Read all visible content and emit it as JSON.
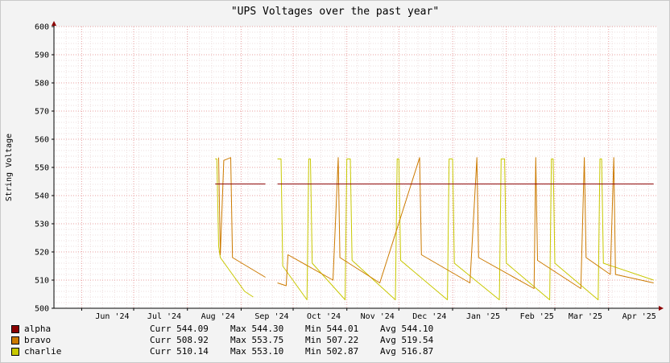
{
  "chart_data": {
    "type": "line",
    "title": "\"UPS Voltages over the past year\"",
    "ylabel": "String Voltage",
    "xlabel": "",
    "ylim": [
      500,
      600
    ],
    "xlim": [
      "2024-05-16",
      "2025-04-29"
    ],
    "yticks": [
      500,
      510,
      520,
      530,
      540,
      550,
      560,
      570,
      580,
      590,
      600
    ],
    "xticks": [
      {
        "label": "Jun '24",
        "date": "2024-06-01"
      },
      {
        "label": "Jul '24",
        "date": "2024-07-01"
      },
      {
        "label": "Aug '24",
        "date": "2024-08-01"
      },
      {
        "label": "Sep '24",
        "date": "2024-09-01"
      },
      {
        "label": "Oct '24",
        "date": "2024-10-01"
      },
      {
        "label": "Nov '24",
        "date": "2024-11-01"
      },
      {
        "label": "Dec '24",
        "date": "2024-12-01"
      },
      {
        "label": "Jan '25",
        "date": "2025-01-01"
      },
      {
        "label": "Feb '25",
        "date": "2025-02-01"
      },
      {
        "label": "Mar '25",
        "date": "2025-03-01"
      },
      {
        "label": "Apr '25",
        "date": "2025-04-01"
      }
    ],
    "grid": true,
    "legend_position": "bottom",
    "series": [
      {
        "name": "alpha",
        "color": "#8b0000",
        "stats": {
          "curr_label": "Curr",
          "curr": "544.09",
          "max_label": "Max",
          "max": "544.30",
          "min_label": "Min",
          "min": "544.01",
          "avg_label": "Avg",
          "avg": "544.10"
        },
        "segments": [
          [
            [
              "2024-08-17",
              544.1
            ],
            [
              "2024-09-15",
              544.1
            ]
          ],
          [
            [
              "2024-09-22",
              544.1
            ],
            [
              "2025-04-27",
              544.1
            ]
          ]
        ]
      },
      {
        "name": "bravo",
        "color": "#cc7a00",
        "stats": {
          "curr_label": "Curr",
          "curr": "508.92",
          "max_label": "Max",
          "max": "553.75",
          "min_label": "Min",
          "min": "507.22",
          "avg_label": "Avg",
          "avg": "519.54"
        },
        "segments": [
          [
            [
              "2024-08-19",
              553.5
            ],
            [
              "2024-08-20",
              519
            ],
            [
              "2024-08-22",
              552.5
            ],
            [
              "2024-08-26",
              553.5
            ],
            [
              "2024-08-27",
              518
            ],
            [
              "2024-09-15",
              511
            ]
          ],
          [
            [
              "2024-09-22",
              509
            ],
            [
              "2024-09-27",
              508
            ],
            [
              "2024-09-28",
              519
            ],
            [
              "2024-10-24",
              510
            ],
            [
              "2024-10-27",
              553.5
            ],
            [
              "2024-10-28",
              518
            ],
            [
              "2024-11-20",
              509
            ],
            [
              "2024-12-13",
              553.5
            ],
            [
              "2024-12-14",
              519
            ],
            [
              "2025-01-11",
              509
            ],
            [
              "2025-01-15",
              553.5
            ],
            [
              "2025-01-16",
              518
            ],
            [
              "2025-02-17",
              507
            ],
            [
              "2025-02-18",
              553.5
            ],
            [
              "2025-02-19",
              517
            ],
            [
              "2025-03-16",
              507
            ],
            [
              "2025-03-18",
              553.5
            ],
            [
              "2025-03-19",
              518
            ],
            [
              "2025-04-02",
              512
            ],
            [
              "2025-04-04",
              553.5
            ],
            [
              "2025-04-05",
              512
            ],
            [
              "2025-04-27",
              509
            ]
          ]
        ]
      },
      {
        "name": "charlie",
        "color": "#c8c800",
        "stats": {
          "curr_label": "Curr",
          "curr": "510.14",
          "max_label": "Max",
          "max": "553.10",
          "min_label": "Min",
          "min": "502.87",
          "avg_label": "Avg",
          "avg": "516.87"
        },
        "segments": [
          [
            [
              "2024-08-17",
              553
            ],
            [
              "2024-08-18",
              553
            ],
            [
              "2024-08-19",
              522
            ],
            [
              "2024-08-20",
              518
            ],
            [
              "2024-09-03",
              506
            ],
            [
              "2024-09-08",
              504
            ]
          ],
          [
            [
              "2024-09-22",
              553
            ],
            [
              "2024-09-24",
              553
            ],
            [
              "2024-09-25",
              515
            ],
            [
              "2024-10-09",
              503
            ],
            [
              "2024-10-10",
              553
            ],
            [
              "2024-10-11",
              553
            ],
            [
              "2024-10-12",
              516
            ],
            [
              "2024-10-31",
              503
            ],
            [
              "2024-11-01",
              553
            ],
            [
              "2024-11-03",
              553
            ],
            [
              "2024-11-04",
              517
            ],
            [
              "2024-11-29",
              503
            ],
            [
              "2024-11-30",
              553
            ],
            [
              "2024-12-01",
              553
            ],
            [
              "2024-12-02",
              517
            ],
            [
              "2024-12-29",
              503
            ],
            [
              "2024-12-30",
              553
            ],
            [
              "2025-01-01",
              553
            ],
            [
              "2025-01-02",
              516
            ],
            [
              "2025-01-28",
              503
            ],
            [
              "2025-01-29",
              553
            ],
            [
              "2025-01-31",
              553
            ],
            [
              "2025-02-01",
              516
            ],
            [
              "2025-02-26",
              503
            ],
            [
              "2025-02-27",
              553
            ],
            [
              "2025-02-28",
              553
            ],
            [
              "2025-03-01",
              516
            ],
            [
              "2025-03-26",
              503
            ],
            [
              "2025-03-27",
              553
            ],
            [
              "2025-03-28",
              553
            ],
            [
              "2025-03-29",
              516
            ],
            [
              "2025-04-27",
              510
            ]
          ]
        ]
      }
    ]
  }
}
